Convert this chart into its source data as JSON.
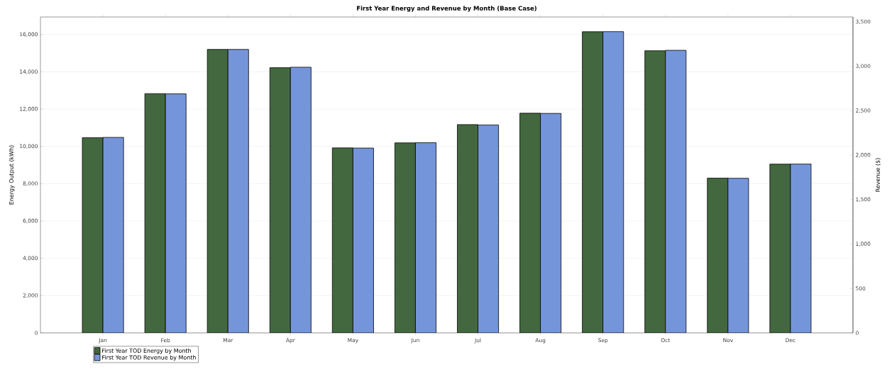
{
  "chart_data": {
    "type": "bar",
    "title": "First Year Energy and Revenue by Month (Base Case)",
    "ylabel": "Energy Output (kWh)",
    "y2label": "Revenue ($)",
    "categories": [
      "Jan",
      "Feb",
      "Mar",
      "Apr",
      "May",
      "Jun",
      "Jul",
      "Aug",
      "Sep",
      "Oct",
      "Nov",
      "Dec"
    ],
    "series": [
      {
        "name": "First Year TOD Energy by Month",
        "color": "#43683f",
        "values": [
          10470,
          12830,
          15200,
          14220,
          9920,
          10190,
          11170,
          11780,
          16150,
          15130,
          8300,
          9050
        ]
      },
      {
        "name": "First Year TOD Revenue by Month",
        "color": "#7595db",
        "axis": "y2",
        "values": [
          2200,
          2690,
          3190,
          2990,
          2080,
          2140,
          2340,
          2470,
          3390,
          3180,
          1740,
          1900
        ]
      }
    ],
    "ylim": [
      0,
      16940
    ],
    "yticks": [
      0,
      {
        "value": 2000,
        "label": "2,000"
      },
      {
        "value": 4000,
        "label": "4,000"
      },
      {
        "value": 6000,
        "label": "6,000"
      },
      {
        "value": 8000,
        "label": "8,000"
      },
      {
        "value": 10000,
        "label": "10,000"
      },
      {
        "value": 12000,
        "label": "12,000"
      },
      {
        "value": 14000,
        "label": "14,000"
      },
      {
        "value": 16000,
        "label": "16,000"
      }
    ],
    "y2lim": [
      0,
      3555
    ],
    "y2ticks": [
      0,
      500,
      {
        "value": 1000,
        "label": "1,000"
      },
      {
        "value": 1500,
        "label": "1,500"
      },
      {
        "value": 2000,
        "label": "2,000"
      },
      {
        "value": 2500,
        "label": "2,500"
      },
      {
        "value": 3000,
        "label": "3,000"
      },
      {
        "value": 3500,
        "label": "3,500"
      }
    ],
    "grid": "y",
    "legend": "bottom left"
  }
}
